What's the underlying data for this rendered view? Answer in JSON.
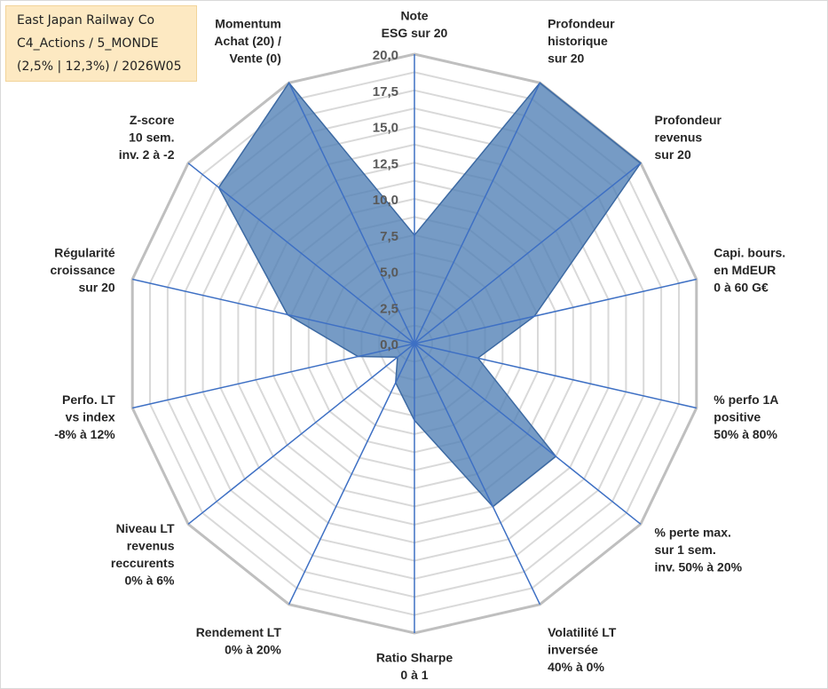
{
  "info_box": {
    "line1": "East Japan Railway Co",
    "line2": "C4_Actions / 5_MONDE",
    "line3": "(2,5% | 12,3%) / 2026W05"
  },
  "chart_data": {
    "type": "radar",
    "title": "",
    "axes": [
      [
        "Note",
        "ESG sur 20"
      ],
      [
        "Profondeur",
        "historique",
        "sur 20"
      ],
      [
        "Profondeur",
        "revenus",
        "sur 20"
      ],
      [
        "Capi. bours.",
        "en MdEUR",
        "0 à 60 G€"
      ],
      [
        "% perfo 1A",
        "positive",
        "50% à 80%"
      ],
      [
        "% perte max.",
        "sur 1 sem.",
        "inv. 50% à 20%"
      ],
      [
        "Volatilité LT",
        "inversée",
        "40% à 0%"
      ],
      [
        "Ratio Sharpe",
        "0 à 1"
      ],
      [
        "Rendement LT",
        "0% à 20%"
      ],
      [
        "Niveau LT",
        "revenus",
        "reccurents",
        "0% à 6%"
      ],
      [
        "Perfo. LT",
        "vs index",
        "-8% à 12%"
      ],
      [
        "Régularité",
        "croissance",
        "sur 20"
      ],
      [
        "Z-score",
        "10 sem.",
        "inv. 2 à -2"
      ],
      [
        "Momentum",
        "Achat (20) /",
        "Vente (0)"
      ]
    ],
    "series": [
      {
        "name": "East Japan Railway Co",
        "values": [
          7.5,
          20,
          20,
          8.5,
          4.5,
          12.5,
          12.5,
          5.3,
          3.0,
          1.5,
          4.0,
          9.0,
          17.3,
          20
        ]
      }
    ],
    "rlim": [
      0,
      20
    ],
    "ticks": [
      "0,0",
      "2,5",
      "5,0",
      "7,5",
      "10,0",
      "12,5",
      "15,0",
      "17,5",
      "20,0"
    ],
    "tick_step": 2.5,
    "grid_levels": 16,
    "colors": {
      "fill": "#4f7fb5",
      "edge": "#3d6aa3",
      "spoke": "#3e70c4",
      "outer_grid": "#bfbfbf",
      "inner_grid": "#d9d9d9"
    }
  }
}
